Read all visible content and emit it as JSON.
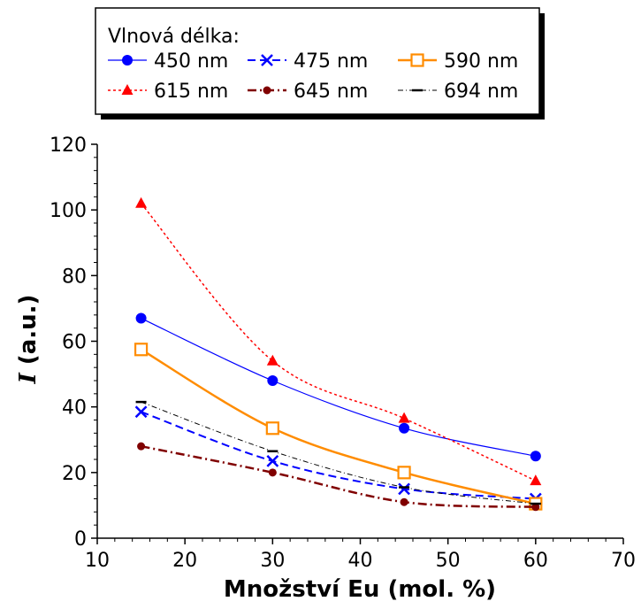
{
  "chart_data": {
    "type": "line",
    "legend_title": "Vlnová délka:",
    "legend_position": "top",
    "xlabel": "Množství Eu (mol. %)",
    "ylabel_italic": "I",
    "ylabel_rest": " (a.u.)",
    "xlim": [
      10,
      70
    ],
    "ylim": [
      0,
      120
    ],
    "x_ticks": [
      10,
      20,
      30,
      40,
      50,
      60,
      70
    ],
    "y_ticks": [
      0,
      20,
      40,
      60,
      80,
      100,
      120
    ],
    "grid": false,
    "x": [
      15,
      30,
      45,
      60
    ],
    "series": [
      {
        "name": "450 nm",
        "values": [
          67,
          48,
          33.5,
          25
        ],
        "color": "#0000ff",
        "marker": "circle-filled",
        "line": "solid"
      },
      {
        "name": "475 nm",
        "values": [
          38.5,
          23.5,
          15,
          12
        ],
        "color": "#0000ff",
        "marker": "x",
        "line": "dashed"
      },
      {
        "name": "590 nm",
        "values": [
          57.5,
          33.5,
          20,
          10.5
        ],
        "color": "#ff8c00",
        "marker": "square-open",
        "line": "solid-thick"
      },
      {
        "name": "615 nm",
        "values": [
          102,
          54,
          36.5,
          17.5
        ],
        "color": "#ff0000",
        "marker": "triangle-filled",
        "line": "dotted"
      },
      {
        "name": "645 nm",
        "values": [
          28,
          20,
          11,
          9.5
        ],
        "color": "#800000",
        "marker": "circle-filled",
        "line": "dash-dot"
      },
      {
        "name": "694 nm",
        "values": [
          41.5,
          26.5,
          15.5,
          10.5
        ],
        "color": "#000000",
        "marker": "dash",
        "line": "dash-dot-thin"
      }
    ]
  }
}
